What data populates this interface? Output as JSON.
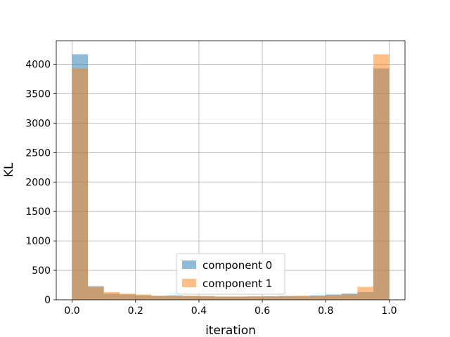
{
  "chart_data": {
    "type": "bar",
    "title": "",
    "xlabel": "iteration",
    "ylabel": "KL",
    "xlim": [
      -0.05,
      1.05
    ],
    "ylim": [
      0,
      4400
    ],
    "grid": true,
    "legend_position": "lower-center",
    "bins": {
      "start": 0.0,
      "end": 1.0,
      "count": 20
    },
    "x_ticks": [
      0.0,
      0.2,
      0.4,
      0.6,
      0.8,
      1.0
    ],
    "x_tick_labels": [
      "0.0",
      "0.2",
      "0.4",
      "0.6",
      "0.8",
      "1.0"
    ],
    "y_ticks": [
      0,
      500,
      1000,
      1500,
      2000,
      2500,
      3000,
      3500,
      4000
    ],
    "y_tick_labels": [
      "0",
      "500",
      "1000",
      "1500",
      "2000",
      "2500",
      "3000",
      "3500",
      "4000"
    ],
    "series": [
      {
        "name": "component 0",
        "color": "#1f77b4",
        "alpha": 0.5,
        "values": [
          4170,
          230,
          105,
          90,
          75,
          65,
          75,
          60,
          60,
          55,
          55,
          55,
          60,
          65,
          60,
          75,
          90,
          105,
          130,
          3930
        ]
      },
      {
        "name": "component 1",
        "color": "#ff7f0e",
        "alpha": 0.5,
        "values": [
          3930,
          220,
          130,
          105,
          90,
          70,
          60,
          70,
          65,
          55,
          55,
          60,
          55,
          60,
          70,
          60,
          75,
          90,
          220,
          4170
        ]
      }
    ]
  }
}
